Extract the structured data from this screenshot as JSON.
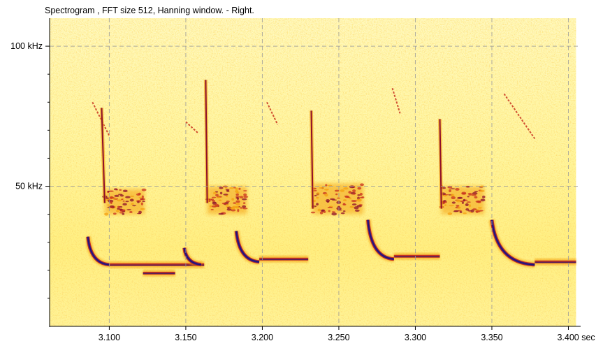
{
  "chart_data": {
    "type": "heatmap",
    "title": "Spectrogram , FFT size 512, Hanning window. - Right.",
    "x": {
      "unit": "sec",
      "range": [
        3.061,
        3.408
      ],
      "ticks": [
        3.1,
        3.15,
        3.2,
        3.25,
        3.3,
        3.35,
        3.4
      ],
      "tick_labels": [
        "3.100",
        "3.150",
        "3.200",
        "3.250",
        "3.300",
        "3.350",
        "3.400 sec"
      ]
    },
    "y": {
      "unit": "kHz",
      "range": [
        0,
        110
      ],
      "major_ticks": [
        50,
        100
      ],
      "major_tick_labels": [
        "50 kHz",
        "100 kHz"
      ],
      "minor_ticks": [
        10,
        20,
        30,
        40,
        60,
        70,
        80,
        90
      ]
    },
    "grid": true,
    "colormap": [
      "#fffbe6",
      "#fff59a",
      "#ffe02a",
      "#f4a010",
      "#c8321e",
      "#8e0f2a",
      "#4a1c7a",
      "#1c1478"
    ],
    "calls": [
      {
        "start_time": 3.095,
        "start_khz": 78,
        "end_time": 3.097,
        "end_khz": 44
      },
      {
        "start_time": 3.163,
        "start_khz": 88,
        "end_time": 3.164,
        "end_khz": 44
      },
      {
        "start_time": 3.232,
        "start_khz": 77,
        "end_time": 3.233,
        "end_khz": 42
      },
      {
        "start_time": 3.316,
        "start_khz": 74,
        "end_time": 3.317,
        "end_khz": 42
      }
    ],
    "fm_sweeps": [
      {
        "start_time": 3.086,
        "start_khz": 32,
        "end_time": 3.1,
        "end_khz": 22
      },
      {
        "start_time": 3.149,
        "start_khz": 28,
        "end_time": 3.16,
        "end_khz": 22
      },
      {
        "start_time": 3.183,
        "start_khz": 34,
        "end_time": 3.198,
        "end_khz": 23
      },
      {
        "start_time": 3.269,
        "start_khz": 38,
        "end_time": 3.286,
        "end_khz": 24
      },
      {
        "start_time": 3.35,
        "start_khz": 38,
        "end_time": 3.378,
        "end_khz": 22
      }
    ],
    "constant_bands": [
      {
        "start_time": 3.1,
        "end_time": 3.162,
        "khz": 22
      },
      {
        "start_time": 3.122,
        "end_time": 3.143,
        "khz": 19
      },
      {
        "start_time": 3.198,
        "end_time": 3.23,
        "khz": 24
      },
      {
        "start_time": 3.286,
        "end_time": 3.316,
        "khz": 25
      },
      {
        "start_time": 3.378,
        "end_time": 3.405,
        "khz": 23
      }
    ],
    "echo_traces": [
      {
        "start_time": 3.089,
        "start_khz": 80,
        "end_time": 3.1,
        "end_khz": 68
      },
      {
        "start_time": 3.15,
        "start_khz": 73,
        "end_time": 3.158,
        "end_khz": 69
      },
      {
        "start_time": 3.203,
        "start_khz": 80,
        "end_time": 3.21,
        "end_khz": 72
      },
      {
        "start_time": 3.285,
        "start_khz": 85,
        "end_time": 3.29,
        "end_khz": 76
      },
      {
        "start_time": 3.358,
        "start_khz": 83,
        "end_time": 3.378,
        "end_khz": 67
      }
    ],
    "energy_patches": [
      {
        "start_time": 3.097,
        "end_time": 3.123,
        "low_khz": 40,
        "high_khz": 49
      },
      {
        "start_time": 3.164,
        "end_time": 3.19,
        "low_khz": 40,
        "high_khz": 50
      },
      {
        "start_time": 3.233,
        "end_time": 3.266,
        "low_khz": 40,
        "high_khz": 51
      },
      {
        "start_time": 3.317,
        "end_time": 3.345,
        "low_khz": 40,
        "high_khz": 50
      }
    ],
    "signal_end_time": 3.405
  }
}
